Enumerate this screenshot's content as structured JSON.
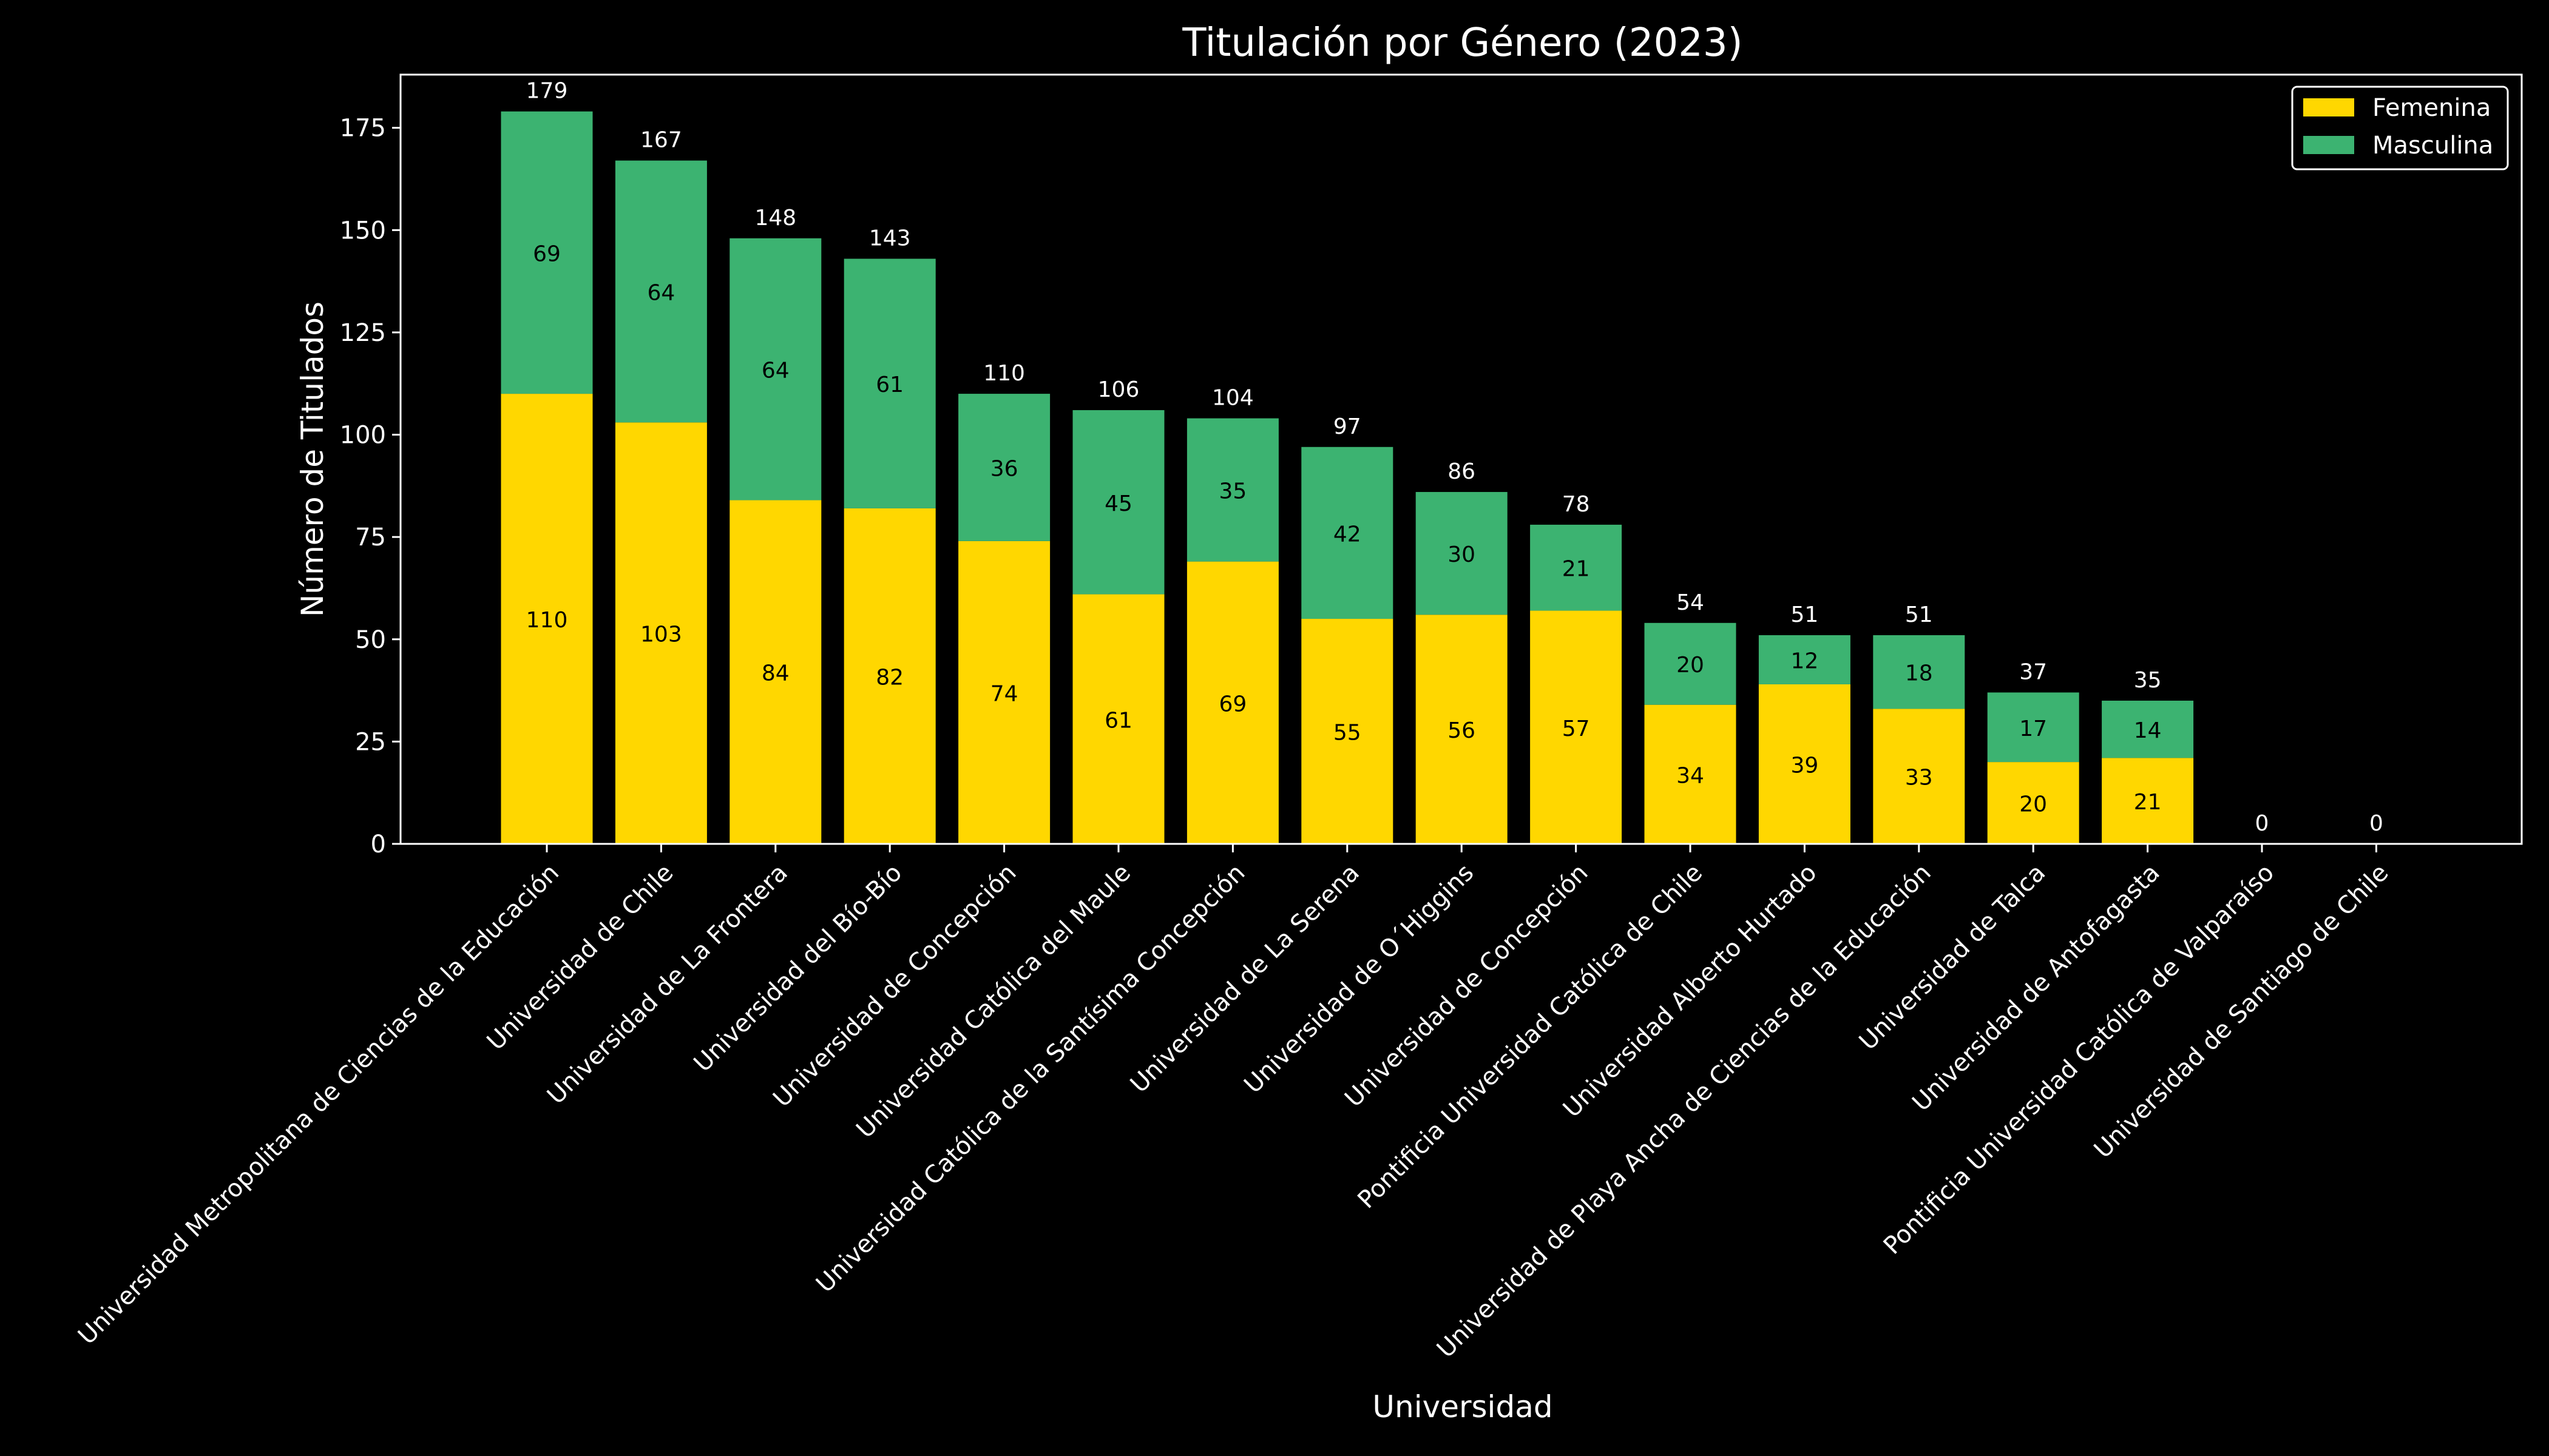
{
  "chart_data": {
    "type": "bar",
    "stacked": true,
    "title": "Titulación por Género (2023)",
    "xlabel": "Universidad",
    "ylabel": "Número de Titulados",
    "ylim": [
      0,
      188
    ],
    "yticks": [
      0,
      25,
      50,
      75,
      100,
      125,
      150,
      175
    ],
    "grid": false,
    "legend_position": "top-right",
    "categories": [
      "Universidad Metropolitana de Ciencias de la Educación",
      "Universidad de Chile",
      "Universidad de La Frontera",
      "Universidad del Bío-Bío",
      "Universidad de Concepción",
      "Universidad Católica del Maule",
      "Universidad Católica de la Santísima Concepción",
      "Universidad de La Serena",
      "Universidad de O´Higgins",
      "Universidad de Concepción",
      "Pontificia Universidad Católica de Chile",
      "Universidad Alberto Hurtado",
      "Universidad de Playa Ancha de Ciencias de la Educación",
      "Universidad de Talca",
      "Universidad de Antofagasta",
      "Pontificia Universidad Católica de Valparaíso",
      "Universidad de Santiago de Chile"
    ],
    "series": [
      {
        "name": "Femenina",
        "color": "#FFD700",
        "values": [
          110,
          103,
          84,
          82,
          74,
          61,
          69,
          55,
          56,
          57,
          34,
          39,
          33,
          20,
          21,
          0,
          0
        ]
      },
      {
        "name": "Masculina",
        "color": "#3CB371",
        "values": [
          69,
          64,
          64,
          61,
          36,
          45,
          35,
          42,
          30,
          21,
          20,
          12,
          18,
          17,
          14,
          0,
          0
        ]
      }
    ],
    "totals": [
      179,
      167,
      148,
      143,
      110,
      106,
      104,
      97,
      86,
      78,
      54,
      51,
      51,
      37,
      35,
      0,
      0
    ]
  },
  "colors": {
    "background": "#000000",
    "foreground": "#FFFFFF",
    "segment_label": "#000000"
  }
}
